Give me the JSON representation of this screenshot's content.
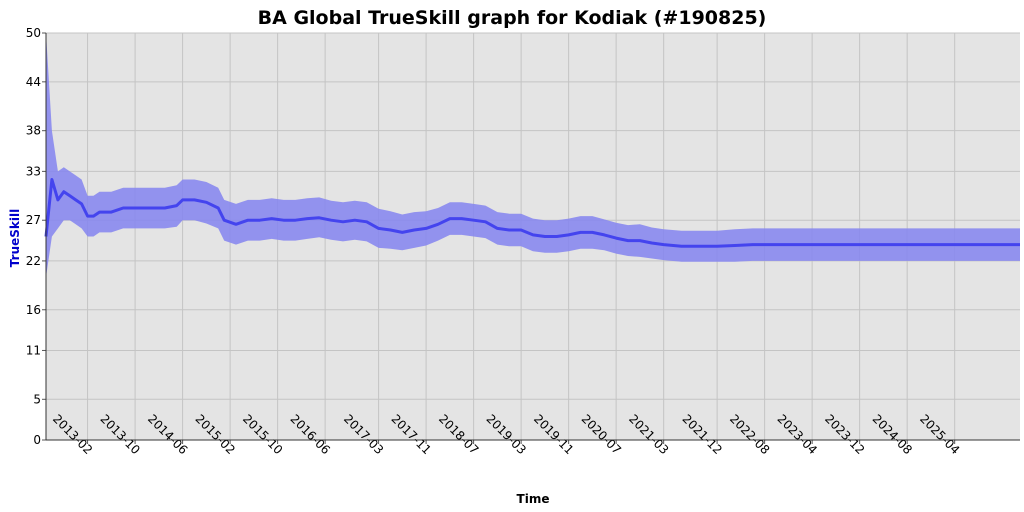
{
  "chart_data": {
    "type": "line",
    "title": "BA Global TrueSkill graph for Kodiak (#190825)",
    "xlabel": "Time",
    "ylabel": "TrueSkill",
    "x_ticks": [
      "2013-02",
      "2013-10",
      "2014-06",
      "2015-02",
      "2015-10",
      "2016-06",
      "2017-03",
      "2017-11",
      "2018-07",
      "2019-03",
      "2019-11",
      "2020-07",
      "2021-03",
      "2021-12",
      "2022-08",
      "2023-04",
      "2023-12",
      "2024-08",
      "2025-04"
    ],
    "y_ticks": [
      "0",
      "5",
      "11",
      "16",
      "22",
      "27",
      "33",
      "38",
      "44",
      "50"
    ],
    "ylim": [
      0,
      50
    ],
    "xlim": [
      "2012-07",
      "2026-03"
    ],
    "grid": true,
    "colors": {
      "line": "#4444ee",
      "band": "#8888ee",
      "plot_bg": "#e4e4e4",
      "grid": "#c4c4c4",
      "ylabel": "#0000cc"
    },
    "series": [
      {
        "x": [
          "2012-07",
          "2012-08",
          "2012-09",
          "2012-10",
          "2012-11",
          "2012-12",
          "2013-01",
          "2013-02",
          "2013-03",
          "2013-04",
          "2013-06",
          "2013-08",
          "2013-10",
          "2013-12",
          "2014-01",
          "2014-03",
          "2014-05",
          "2014-06",
          "2014-08",
          "2014-10",
          "2014-12",
          "2015-01",
          "2015-03",
          "2015-05",
          "2015-07",
          "2015-09",
          "2015-11",
          "2016-01",
          "2016-03",
          "2016-05",
          "2016-07",
          "2016-09",
          "2016-11",
          "2017-01",
          "2017-03",
          "2017-05",
          "2017-07",
          "2017-09",
          "2017-11",
          "2018-01",
          "2018-03",
          "2018-05",
          "2018-07",
          "2018-09",
          "2018-11",
          "2019-01",
          "2019-03",
          "2019-05",
          "2019-07",
          "2019-09",
          "2019-11",
          "2020-01",
          "2020-03",
          "2020-05",
          "2020-07",
          "2020-09",
          "2020-11",
          "2021-01",
          "2021-03",
          "2021-06",
          "2021-09",
          "2021-12",
          "2022-03",
          "2022-06",
          "2022-09",
          "2023-01",
          "2023-06",
          "2023-12",
          "2024-06",
          "2024-12",
          "2025-06",
          "2026-03"
        ],
        "y": [
          25.0,
          32.0,
          29.5,
          30.5,
          30.0,
          29.5,
          29.0,
          27.5,
          27.5,
          28.0,
          28.0,
          28.5,
          28.5,
          28.5,
          28.5,
          28.5,
          28.8,
          29.5,
          29.5,
          29.2,
          28.5,
          27.0,
          26.5,
          27.0,
          27.0,
          27.2,
          27.0,
          27.0,
          27.2,
          27.3,
          27.0,
          26.8,
          27.0,
          26.8,
          26.0,
          25.8,
          25.5,
          25.8,
          26.0,
          26.5,
          27.2,
          27.2,
          27.0,
          26.8,
          26.0,
          25.8,
          25.8,
          25.2,
          25.0,
          25.0,
          25.2,
          25.5,
          25.5,
          25.2,
          24.8,
          24.5,
          24.5,
          24.2,
          24.0,
          23.8,
          23.8,
          23.8,
          23.9,
          24.0,
          24.0,
          24.0,
          24.0,
          24.0,
          24.0,
          24.0,
          24.0,
          24.0
        ],
        "lower": [
          20.0,
          25.0,
          26.0,
          27.0,
          27.0,
          26.5,
          26.0,
          25.0,
          25.0,
          25.5,
          25.5,
          26.0,
          26.0,
          26.0,
          26.0,
          26.0,
          26.2,
          27.0,
          27.0,
          26.6,
          26.0,
          24.5,
          24.0,
          24.5,
          24.5,
          24.7,
          24.5,
          24.5,
          24.7,
          24.9,
          24.6,
          24.4,
          24.6,
          24.4,
          23.6,
          23.5,
          23.3,
          23.6,
          23.9,
          24.5,
          25.2,
          25.2,
          25.0,
          24.8,
          24.0,
          23.8,
          23.8,
          23.2,
          23.0,
          23.0,
          23.2,
          23.5,
          23.5,
          23.3,
          22.9,
          22.6,
          22.5,
          22.3,
          22.1,
          21.9,
          21.9,
          21.9,
          21.9,
          22.0,
          22.0,
          22.0,
          22.0,
          22.0,
          22.0,
          22.0,
          22.0,
          22.0
        ],
        "upper": [
          50.0,
          38.0,
          33.0,
          33.5,
          33.0,
          32.5,
          32.0,
          30.0,
          30.0,
          30.5,
          30.5,
          31.0,
          31.0,
          31.0,
          31.0,
          31.0,
          31.3,
          32.0,
          32.0,
          31.7,
          31.0,
          29.5,
          29.0,
          29.5,
          29.5,
          29.7,
          29.5,
          29.5,
          29.7,
          29.8,
          29.4,
          29.2,
          29.4,
          29.2,
          28.4,
          28.1,
          27.7,
          28.0,
          28.1,
          28.5,
          29.2,
          29.2,
          29.0,
          28.8,
          28.0,
          27.8,
          27.8,
          27.2,
          27.0,
          27.0,
          27.2,
          27.5,
          27.5,
          27.1,
          26.7,
          26.4,
          26.5,
          26.1,
          25.9,
          25.7,
          25.7,
          25.7,
          25.9,
          26.0,
          26.0,
          26.0,
          26.0,
          26.0,
          26.0,
          26.0,
          26.0,
          26.0
        ]
      }
    ]
  }
}
